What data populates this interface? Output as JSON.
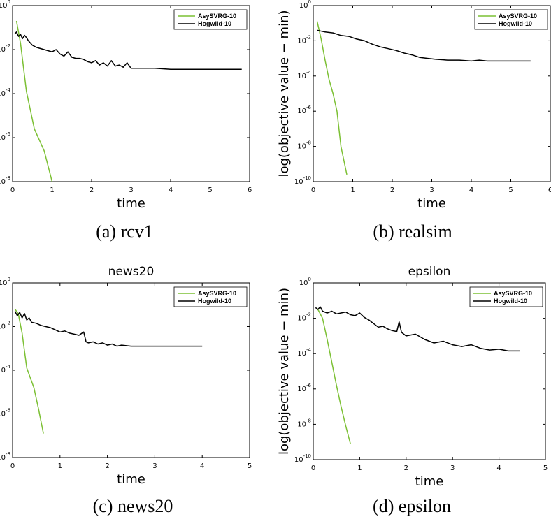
{
  "chart_data": [
    {
      "type": "line",
      "caption": "(a) rcv1",
      "title": "",
      "xlabel": "time",
      "ylabel": "",
      "xlim": [
        0,
        6
      ],
      "x_ticks": [
        "0",
        "1",
        "2",
        "3",
        "4",
        "5",
        "6"
      ],
      "ylim_log10": [
        -8,
        0
      ],
      "y_ticks": [
        {
          "base": "10",
          "exp": "0"
        },
        {
          "base": "10",
          "exp": "-2"
        },
        {
          "base": "10",
          "exp": "-4"
        },
        {
          "base": "10",
          "exp": "-6"
        },
        {
          "base": "10",
          "exp": "-8"
        }
      ],
      "legend": "top-right",
      "series": [
        {
          "name": "AsySVRG-10",
          "color": "#7cc034",
          "x": [
            0.1,
            0.2,
            0.35,
            0.55,
            0.8,
            1.0
          ],
          "log10_y": [
            -0.7,
            -1.7,
            -3.9,
            -5.6,
            -6.6,
            -8.0
          ]
        },
        {
          "name": "Hogwild-10",
          "color": "#000000",
          "x": [
            0.05,
            0.1,
            0.15,
            0.2,
            0.25,
            0.3,
            0.35,
            0.4,
            0.45,
            0.5,
            0.6,
            0.7,
            0.8,
            0.9,
            1.0,
            1.1,
            1.2,
            1.3,
            1.4,
            1.5,
            1.6,
            1.7,
            1.8,
            1.9,
            2.0,
            2.1,
            2.2,
            2.3,
            2.4,
            2.5,
            2.6,
            2.7,
            2.8,
            2.9,
            3.0,
            3.3,
            3.6,
            4.0,
            4.5,
            5.0,
            5.8
          ],
          "log10_y": [
            -1.3,
            -1.2,
            -1.4,
            -1.3,
            -1.5,
            -1.35,
            -1.45,
            -1.6,
            -1.7,
            -1.8,
            -1.9,
            -1.95,
            -2.0,
            -2.05,
            -2.1,
            -2.0,
            -2.2,
            -2.3,
            -2.1,
            -2.35,
            -2.4,
            -2.4,
            -2.45,
            -2.55,
            -2.6,
            -2.5,
            -2.7,
            -2.6,
            -2.75,
            -2.5,
            -2.75,
            -2.7,
            -2.8,
            -2.6,
            -2.85,
            -2.85,
            -2.85,
            -2.9,
            -2.9,
            -2.9,
            -2.9
          ]
        }
      ]
    },
    {
      "type": "line",
      "caption": "(b) realsim",
      "title": "",
      "xlabel": "time",
      "ylabel": "log(objective value − min)",
      "xlim": [
        0,
        6
      ],
      "x_ticks": [
        "0",
        "1",
        "2",
        "3",
        "4",
        "5",
        "6"
      ],
      "ylim_log10": [
        -10,
        0
      ],
      "y_ticks": [
        {
          "base": "10",
          "exp": "0"
        },
        {
          "base": "10",
          "exp": "-2"
        },
        {
          "base": "10",
          "exp": "-4"
        },
        {
          "base": "10",
          "exp": "-6"
        },
        {
          "base": "10",
          "exp": "-8"
        },
        {
          "base": "10",
          "exp": "-10"
        }
      ],
      "legend": "top-right",
      "series": [
        {
          "name": "AsySVRG-10",
          "color": "#7cc034",
          "x": [
            0.1,
            0.2,
            0.3,
            0.4,
            0.5,
            0.6,
            0.7,
            0.85
          ],
          "log10_y": [
            -0.9,
            -1.9,
            -3.1,
            -4.2,
            -5.0,
            -6.0,
            -8.0,
            -9.6
          ]
        },
        {
          "name": "Hogwild-10",
          "color": "#000000",
          "x": [
            0.1,
            0.3,
            0.5,
            0.7,
            0.9,
            1.1,
            1.3,
            1.5,
            1.7,
            1.9,
            2.1,
            2.3,
            2.5,
            2.7,
            2.9,
            3.1,
            3.4,
            3.7,
            4.0,
            4.2,
            4.4,
            4.5,
            5.0,
            5.5
          ],
          "log10_y": [
            -1.4,
            -1.5,
            -1.55,
            -1.7,
            -1.75,
            -1.9,
            -2.0,
            -2.2,
            -2.35,
            -2.45,
            -2.55,
            -2.7,
            -2.8,
            -2.95,
            -3.0,
            -3.05,
            -3.1,
            -3.1,
            -3.15,
            -3.1,
            -3.15,
            -3.15,
            -3.15,
            -3.15
          ]
        }
      ]
    },
    {
      "type": "line",
      "caption": "(c) news20",
      "title": "news20",
      "xlabel": "time",
      "ylabel": "",
      "xlim": [
        0,
        5
      ],
      "x_ticks": [
        "0",
        "1",
        "2",
        "3",
        "4",
        "5"
      ],
      "ylim_log10": [
        -8,
        0
      ],
      "y_ticks": [
        {
          "base": "10",
          "exp": "0"
        },
        {
          "base": "10",
          "exp": "-2"
        },
        {
          "base": "10",
          "exp": "-4"
        },
        {
          "base": "10",
          "exp": "-6"
        },
        {
          "base": "10",
          "exp": "-8"
        }
      ],
      "legend": "top-right",
      "series": [
        {
          "name": "AsySVRG-10",
          "color": "#7cc034",
          "x": [
            0.05,
            0.12,
            0.2,
            0.3,
            0.45,
            0.55,
            0.65
          ],
          "log10_y": [
            -1.2,
            -1.4,
            -2.3,
            -3.9,
            -4.8,
            -5.8,
            -6.9
          ]
        },
        {
          "name": "Hogwild-10",
          "color": "#000000",
          "x": [
            0.05,
            0.1,
            0.15,
            0.2,
            0.25,
            0.3,
            0.35,
            0.4,
            0.5,
            0.6,
            0.7,
            0.8,
            0.9,
            1.0,
            1.1,
            1.2,
            1.3,
            1.4,
            1.5,
            1.55,
            1.6,
            1.7,
            1.8,
            1.9,
            2.0,
            2.1,
            2.2,
            2.3,
            2.5,
            2.7,
            2.9,
            3.0,
            3.5,
            4.0
          ],
          "log10_y": [
            -1.3,
            -1.5,
            -1.35,
            -1.6,
            -1.4,
            -1.7,
            -1.6,
            -1.8,
            -1.85,
            -1.95,
            -2.0,
            -2.05,
            -2.15,
            -2.25,
            -2.2,
            -2.3,
            -2.35,
            -2.4,
            -2.25,
            -2.7,
            -2.75,
            -2.7,
            -2.8,
            -2.75,
            -2.85,
            -2.8,
            -2.9,
            -2.85,
            -2.9,
            -2.9,
            -2.9,
            -2.9,
            -2.9,
            -2.9
          ]
        }
      ]
    },
    {
      "type": "line",
      "caption": "(d) epsilon",
      "title": "epsilon",
      "xlabel": "time",
      "ylabel": "log(objective value − min)",
      "xlim": [
        0,
        5
      ],
      "x_ticks": [
        "0",
        "1",
        "2",
        "3",
        "4",
        "5"
      ],
      "ylim_log10": [
        -10,
        0
      ],
      "y_ticks": [
        {
          "base": "10",
          "exp": "0"
        },
        {
          "base": "10",
          "exp": "-2"
        },
        {
          "base": "10",
          "exp": "-4"
        },
        {
          "base": "10",
          "exp": "-6"
        },
        {
          "base": "10",
          "exp": "-8"
        },
        {
          "base": "10",
          "exp": "-10"
        }
      ],
      "legend": "top-right",
      "series": [
        {
          "name": "AsySVRG-10",
          "color": "#7cc034",
          "x": [
            0.1,
            0.2,
            0.3,
            0.4,
            0.5,
            0.6,
            0.7,
            0.8
          ],
          "log10_y": [
            -1.5,
            -2.0,
            -3.2,
            -4.5,
            -5.8,
            -7.0,
            -8.1,
            -9.1
          ]
        },
        {
          "name": "Hogwild-10",
          "color": "#000000",
          "x": [
            0.05,
            0.1,
            0.15,
            0.2,
            0.3,
            0.4,
            0.5,
            0.6,
            0.7,
            0.8,
            0.9,
            1.0,
            1.1,
            1.2,
            1.3,
            1.4,
            1.5,
            1.6,
            1.7,
            1.8,
            1.85,
            1.9,
            2.0,
            2.2,
            2.4,
            2.6,
            2.8,
            3.0,
            3.2,
            3.4,
            3.6,
            3.8,
            4.0,
            4.2,
            4.45
          ],
          "log10_y": [
            -1.4,
            -1.5,
            -1.35,
            -1.6,
            -1.7,
            -1.6,
            -1.75,
            -1.7,
            -1.65,
            -1.8,
            -1.85,
            -1.7,
            -1.95,
            -2.1,
            -2.3,
            -2.5,
            -2.45,
            -2.6,
            -2.7,
            -2.75,
            -2.2,
            -2.8,
            -3.0,
            -2.9,
            -3.2,
            -3.4,
            -3.3,
            -3.5,
            -3.6,
            -3.5,
            -3.7,
            -3.8,
            -3.75,
            -3.85,
            -3.85
          ]
        }
      ]
    }
  ]
}
